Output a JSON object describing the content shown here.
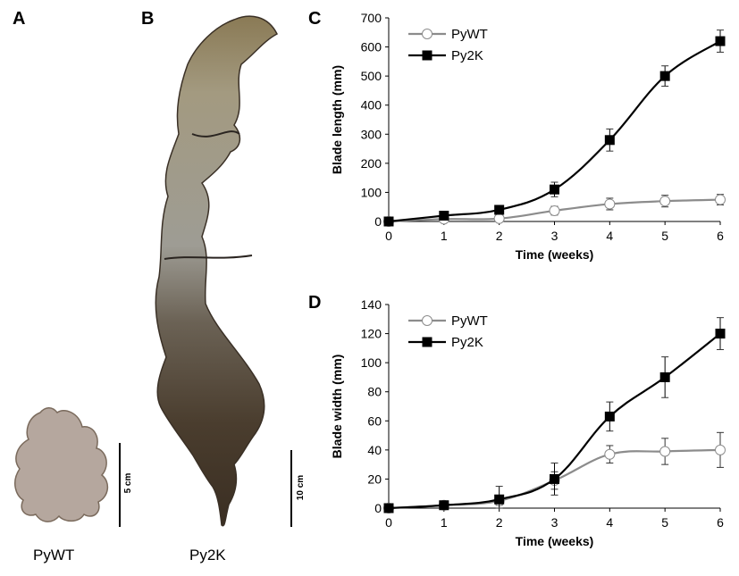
{
  "figure": {
    "panel_a": "A",
    "panel_b": "B",
    "panel_c": "C",
    "panel_d": "D",
    "photo_a_label": "PyWT",
    "photo_b_label": "Py2K",
    "scale_a": "5 cm",
    "scale_b": "10 cm"
  },
  "chart_data": [
    {
      "type": "line",
      "xlabel": "Time (weeks)",
      "ylabel": "Blade length (mm)",
      "x": [
        0,
        1,
        2,
        3,
        4,
        5,
        6
      ],
      "xlim": [
        0,
        6
      ],
      "ylim": [
        0,
        700
      ],
      "yticks": [
        0,
        100,
        200,
        300,
        400,
        500,
        600,
        700
      ],
      "legend": "top-left",
      "grid": false,
      "series": [
        {
          "name": "PyWT",
          "color": "#8c8c8c",
          "marker": "open-circle",
          "values": [
            0,
            8,
            10,
            37,
            60,
            70,
            75
          ],
          "errors": [
            0,
            2,
            3,
            15,
            20,
            20,
            18
          ]
        },
        {
          "name": "Py2K",
          "color": "#000000",
          "marker": "filled-square",
          "values": [
            0,
            20,
            40,
            110,
            280,
            500,
            620
          ],
          "errors": [
            0,
            5,
            8,
            25,
            38,
            35,
            38
          ]
        }
      ]
    },
    {
      "type": "line",
      "xlabel": "Time (weeks)",
      "ylabel": "Blade width (mm)",
      "x": [
        0,
        1,
        2,
        3,
        4,
        5,
        6
      ],
      "xlim": [
        0,
        6
      ],
      "ylim": [
        0,
        140
      ],
      "yticks": [
        0,
        20,
        40,
        60,
        80,
        100,
        120,
        140
      ],
      "legend": "top-left",
      "grid": false,
      "series": [
        {
          "name": "PyWT",
          "color": "#8c8c8c",
          "marker": "open-circle",
          "values": [
            0,
            2,
            5,
            19,
            37,
            39,
            40
          ],
          "errors": [
            0,
            1,
            3,
            6,
            6,
            9,
            12
          ]
        },
        {
          "name": "Py2K",
          "color": "#000000",
          "marker": "filled-square",
          "values": [
            0,
            2,
            6,
            20,
            63,
            90,
            120
          ],
          "errors": [
            0,
            2,
            9,
            11,
            10,
            14,
            11
          ]
        }
      ]
    }
  ]
}
